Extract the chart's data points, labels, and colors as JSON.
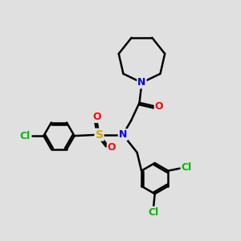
{
  "bg_color": "#e0e0e0",
  "atom_colors": {
    "N": "#0000ee",
    "O": "#ff0000",
    "S": "#ccaa00",
    "Cl": "#00bb00",
    "C": "#000000"
  },
  "bond_color": "#000000",
  "bond_width": 1.8,
  "figsize": [
    3.0,
    3.0
  ],
  "dpi": 100
}
